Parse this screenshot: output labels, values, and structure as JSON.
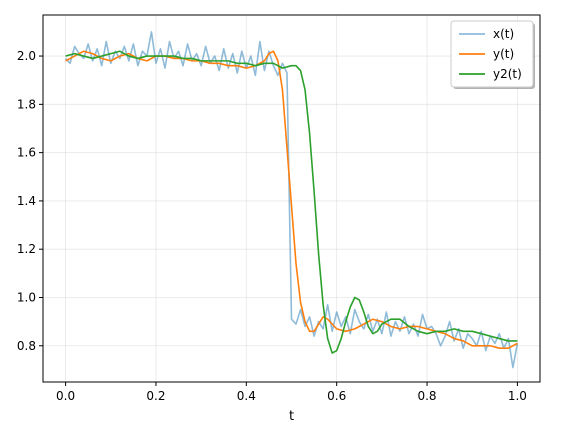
{
  "chart_data": {
    "type": "line",
    "title": "",
    "xlabel": "t",
    "ylabel": "",
    "xlim": [
      -0.05,
      1.05
    ],
    "ylim": [
      0.65,
      2.17
    ],
    "xticks": [
      0.0,
      0.2,
      0.4,
      0.6,
      0.8,
      1.0
    ],
    "yticks": [
      0.8,
      1.0,
      1.2,
      1.4,
      1.6,
      1.8,
      2.0
    ],
    "grid": true,
    "legend_position": "top-right",
    "series": [
      {
        "name": "x(t)",
        "color": "#1f77b4",
        "opacity": 0.5,
        "x": [
          0.0,
          0.01,
          0.02,
          0.03,
          0.04,
          0.05,
          0.06,
          0.07,
          0.08,
          0.09,
          0.1,
          0.11,
          0.12,
          0.13,
          0.14,
          0.15,
          0.16,
          0.17,
          0.18,
          0.19,
          0.2,
          0.21,
          0.22,
          0.23,
          0.24,
          0.25,
          0.26,
          0.27,
          0.28,
          0.29,
          0.3,
          0.31,
          0.32,
          0.33,
          0.34,
          0.35,
          0.36,
          0.37,
          0.38,
          0.39,
          0.4,
          0.41,
          0.42,
          0.43,
          0.44,
          0.45,
          0.46,
          0.47,
          0.48,
          0.49,
          0.5,
          0.51,
          0.52,
          0.53,
          0.54,
          0.55,
          0.56,
          0.57,
          0.58,
          0.59,
          0.6,
          0.61,
          0.62,
          0.63,
          0.64,
          0.65,
          0.66,
          0.67,
          0.68,
          0.69,
          0.7,
          0.71,
          0.72,
          0.73,
          0.74,
          0.75,
          0.76,
          0.77,
          0.78,
          0.79,
          0.8,
          0.81,
          0.82,
          0.83,
          0.84,
          0.85,
          0.86,
          0.87,
          0.88,
          0.89,
          0.9,
          0.91,
          0.92,
          0.93,
          0.94,
          0.95,
          0.96,
          0.97,
          0.98,
          0.99,
          1.0
        ],
        "values": [
          1.99,
          1.97,
          2.04,
          2.01,
          1.99,
          2.05,
          1.98,
          2.03,
          1.96,
          2.06,
          1.97,
          2.02,
          1.99,
          2.04,
          1.98,
          2.05,
          1.96,
          2.02,
          2.0,
          2.1,
          1.97,
          2.03,
          1.95,
          2.06,
          1.99,
          2.02,
          1.96,
          2.05,
          1.98,
          2.01,
          1.96,
          2.04,
          1.97,
          2.0,
          1.94,
          2.03,
          1.95,
          2.01,
          1.93,
          2.02,
          1.95,
          2.0,
          1.92,
          2.06,
          1.94,
          2.02,
          1.96,
          1.92,
          1.97,
          1.93,
          0.91,
          0.89,
          0.95,
          0.88,
          0.92,
          0.84,
          0.9,
          0.87,
          0.97,
          0.86,
          0.94,
          0.88,
          0.92,
          0.85,
          0.95,
          0.9,
          0.87,
          0.93,
          0.86,
          0.91,
          0.85,
          0.94,
          0.84,
          0.9,
          0.86,
          0.92,
          0.85,
          0.89,
          0.84,
          0.93,
          0.87,
          0.88,
          0.85,
          0.8,
          0.84,
          0.9,
          0.82,
          0.87,
          0.79,
          0.85,
          0.83,
          0.8,
          0.86,
          0.78,
          0.84,
          0.81,
          0.85,
          0.79,
          0.83,
          0.71,
          0.81
        ]
      },
      {
        "name": "y(t)",
        "color": "#ff7f0e",
        "x": [
          0.0,
          0.02,
          0.04,
          0.06,
          0.08,
          0.1,
          0.12,
          0.14,
          0.16,
          0.18,
          0.2,
          0.22,
          0.24,
          0.26,
          0.28,
          0.3,
          0.32,
          0.34,
          0.36,
          0.38,
          0.4,
          0.42,
          0.44,
          0.45,
          0.46,
          0.47,
          0.48,
          0.49,
          0.5,
          0.51,
          0.52,
          0.53,
          0.54,
          0.55,
          0.56,
          0.57,
          0.58,
          0.6,
          0.62,
          0.64,
          0.66,
          0.68,
          0.7,
          0.72,
          0.74,
          0.76,
          0.78,
          0.8,
          0.82,
          0.84,
          0.86,
          0.88,
          0.9,
          0.92,
          0.94,
          0.96,
          0.98,
          1.0
        ],
        "values": [
          1.98,
          2.0,
          2.02,
          2.01,
          1.99,
          1.98,
          2.0,
          2.01,
          1.99,
          1.98,
          2.0,
          2.0,
          1.99,
          1.99,
          1.98,
          1.98,
          1.97,
          1.97,
          1.96,
          1.96,
          1.95,
          1.96,
          1.98,
          2.01,
          2.02,
          1.98,
          1.86,
          1.62,
          1.38,
          1.14,
          0.98,
          0.9,
          0.86,
          0.86,
          0.89,
          0.92,
          0.91,
          0.87,
          0.86,
          0.87,
          0.89,
          0.91,
          0.9,
          0.88,
          0.87,
          0.88,
          0.88,
          0.87,
          0.86,
          0.85,
          0.83,
          0.82,
          0.8,
          0.8,
          0.8,
          0.79,
          0.79,
          0.81
        ]
      },
      {
        "name": "y2(t)",
        "color": "#2ca02c",
        "x": [
          0.0,
          0.02,
          0.04,
          0.06,
          0.08,
          0.1,
          0.12,
          0.14,
          0.16,
          0.18,
          0.2,
          0.22,
          0.24,
          0.26,
          0.28,
          0.3,
          0.32,
          0.34,
          0.36,
          0.38,
          0.4,
          0.42,
          0.44,
          0.46,
          0.48,
          0.5,
          0.51,
          0.52,
          0.53,
          0.54,
          0.55,
          0.56,
          0.57,
          0.58,
          0.59,
          0.6,
          0.61,
          0.62,
          0.63,
          0.64,
          0.65,
          0.66,
          0.67,
          0.68,
          0.69,
          0.7,
          0.72,
          0.74,
          0.76,
          0.78,
          0.8,
          0.82,
          0.84,
          0.86,
          0.88,
          0.9,
          0.92,
          0.94,
          0.96,
          0.98,
          1.0
        ],
        "values": [
          2.0,
          2.01,
          2.0,
          1.99,
          2.0,
          2.01,
          2.02,
          2.0,
          1.99,
          2.0,
          2.0,
          2.0,
          2.0,
          1.99,
          1.99,
          1.98,
          1.98,
          1.98,
          1.98,
          1.97,
          1.97,
          1.96,
          1.97,
          1.97,
          1.95,
          1.96,
          1.96,
          1.94,
          1.86,
          1.68,
          1.44,
          1.18,
          0.97,
          0.83,
          0.77,
          0.78,
          0.83,
          0.9,
          0.96,
          1.0,
          0.99,
          0.94,
          0.88,
          0.85,
          0.86,
          0.89,
          0.91,
          0.91,
          0.88,
          0.86,
          0.85,
          0.86,
          0.86,
          0.87,
          0.86,
          0.86,
          0.85,
          0.84,
          0.83,
          0.82,
          0.82
        ]
      }
    ]
  }
}
